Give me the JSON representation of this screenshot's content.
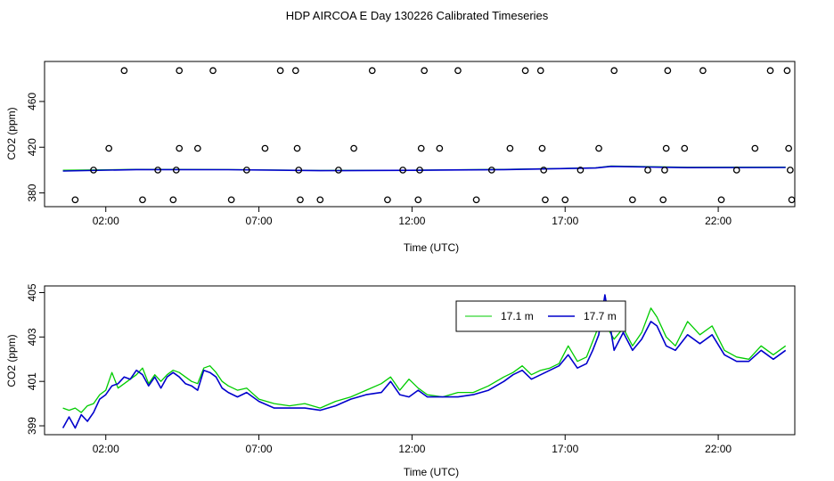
{
  "title": "HDP AIRCOA E  Day 130226  Calibrated Timeseries",
  "colors": {
    "series_17_1": "#00cc00",
    "series_17_7": "#0000cc",
    "points": "#000000",
    "frame": "#000000"
  },
  "chart_data": [
    {
      "type": "scatter",
      "xlabel": "Time (UTC)",
      "ylabel": "CO2 (ppm)",
      "xlim": [
        0,
        24.5
      ],
      "ylim": [
        368,
        495
      ],
      "xtick_values": [
        2,
        7,
        12,
        17,
        22
      ],
      "xtick_labels": [
        "02:00",
        "07:00",
        "12:00",
        "17:00",
        "22:00"
      ],
      "ytick_values": [
        380,
        420,
        460
      ],
      "ytick_labels": [
        "380",
        "420",
        "460"
      ],
      "grid": false,
      "points": [
        {
          "x": 1.0,
          "y": 374
        },
        {
          "x": 1.6,
          "y": 400
        },
        {
          "x": 2.1,
          "y": 419
        },
        {
          "x": 2.6,
          "y": 487
        },
        {
          "x": 3.2,
          "y": 374
        },
        {
          "x": 3.7,
          "y": 400
        },
        {
          "x": 4.2,
          "y": 374
        },
        {
          "x": 4.3,
          "y": 400
        },
        {
          "x": 4.4,
          "y": 419
        },
        {
          "x": 4.4,
          "y": 487
        },
        {
          "x": 5.0,
          "y": 419
        },
        {
          "x": 5.5,
          "y": 487
        },
        {
          "x": 6.1,
          "y": 374
        },
        {
          "x": 6.6,
          "y": 400
        },
        {
          "x": 7.2,
          "y": 419
        },
        {
          "x": 7.7,
          "y": 487
        },
        {
          "x": 8.2,
          "y": 487
        },
        {
          "x": 8.25,
          "y": 419
        },
        {
          "x": 8.3,
          "y": 400
        },
        {
          "x": 8.35,
          "y": 374
        },
        {
          "x": 9.0,
          "y": 374
        },
        {
          "x": 9.6,
          "y": 400
        },
        {
          "x": 10.1,
          "y": 419
        },
        {
          "x": 10.7,
          "y": 487
        },
        {
          "x": 11.2,
          "y": 374
        },
        {
          "x": 11.7,
          "y": 400
        },
        {
          "x": 12.2,
          "y": 374
        },
        {
          "x": 12.25,
          "y": 400
        },
        {
          "x": 12.3,
          "y": 419
        },
        {
          "x": 12.4,
          "y": 487
        },
        {
          "x": 12.9,
          "y": 419
        },
        {
          "x": 13.5,
          "y": 487
        },
        {
          "x": 14.1,
          "y": 374
        },
        {
          "x": 14.6,
          "y": 400
        },
        {
          "x": 15.2,
          "y": 419
        },
        {
          "x": 15.7,
          "y": 487
        },
        {
          "x": 16.2,
          "y": 487
        },
        {
          "x": 16.25,
          "y": 419
        },
        {
          "x": 16.3,
          "y": 400
        },
        {
          "x": 16.35,
          "y": 374
        },
        {
          "x": 17.0,
          "y": 374
        },
        {
          "x": 17.5,
          "y": 400
        },
        {
          "x": 18.1,
          "y": 419
        },
        {
          "x": 18.6,
          "y": 487
        },
        {
          "x": 19.2,
          "y": 374
        },
        {
          "x": 19.7,
          "y": 400
        },
        {
          "x": 20.2,
          "y": 374
        },
        {
          "x": 20.25,
          "y": 400
        },
        {
          "x": 20.3,
          "y": 419
        },
        {
          "x": 20.35,
          "y": 487
        },
        {
          "x": 20.9,
          "y": 419
        },
        {
          "x": 21.5,
          "y": 487
        },
        {
          "x": 22.1,
          "y": 374
        },
        {
          "x": 22.6,
          "y": 400
        },
        {
          "x": 23.2,
          "y": 419
        },
        {
          "x": 23.7,
          "y": 487
        },
        {
          "x": 24.25,
          "y": 487
        },
        {
          "x": 24.3,
          "y": 419
        },
        {
          "x": 24.35,
          "y": 400
        },
        {
          "x": 24.4,
          "y": 374
        }
      ],
      "series": [
        {
          "name": "17.1 m",
          "color": "#00cc00",
          "x": [
            0.6,
            3,
            6,
            9,
            12,
            15,
            18,
            18.5,
            21,
            24.2
          ],
          "y": [
            399.8,
            400.6,
            400.4,
            399.6,
            399.9,
            400.6,
            402,
            403.5,
            402.4,
            402.6
          ]
        },
        {
          "name": "17.7 m",
          "color": "#0000cc",
          "x": [
            0.6,
            3,
            6,
            9,
            12,
            15,
            18,
            18.5,
            21,
            24.2
          ],
          "y": [
            399.2,
            400.4,
            400.3,
            399.5,
            399.8,
            400.4,
            401.8,
            403.2,
            402.1,
            402.3
          ]
        }
      ]
    },
    {
      "type": "line",
      "xlabel": "Time (UTC)",
      "ylabel": "CO2 (ppm)",
      "xlim": [
        0,
        24.5
      ],
      "ylim": [
        398.6,
        405.3
      ],
      "xtick_values": [
        2,
        7,
        12,
        17,
        22
      ],
      "xtick_labels": [
        "02:00",
        "07:00",
        "12:00",
        "17:00",
        "22:00"
      ],
      "ytick_values": [
        399,
        401,
        403,
        405
      ],
      "ytick_labels": [
        "399",
        "401",
        "403",
        "405"
      ],
      "grid": false,
      "legend": {
        "position": "top-right"
      },
      "series": [
        {
          "name": "17.1 m",
          "color": "#00cc00",
          "x": [
            0.6,
            0.8,
            1.0,
            1.2,
            1.4,
            1.6,
            1.8,
            2.0,
            2.2,
            2.4,
            2.6,
            2.8,
            3.0,
            3.2,
            3.4,
            3.6,
            3.8,
            4.0,
            4.2,
            4.4,
            4.6,
            4.8,
            5.0,
            5.2,
            5.4,
            5.6,
            5.8,
            6.0,
            6.3,
            6.6,
            7.0,
            7.5,
            8.0,
            8.5,
            9.0,
            9.5,
            10.0,
            10.5,
            11.0,
            11.3,
            11.6,
            11.9,
            12.2,
            12.5,
            13.0,
            13.5,
            14.0,
            14.5,
            15.0,
            15.3,
            15.6,
            15.9,
            16.2,
            16.5,
            16.8,
            17.1,
            17.4,
            17.7,
            17.9,
            18.1,
            18.3,
            18.6,
            18.9,
            19.2,
            19.5,
            19.8,
            20.0,
            20.3,
            20.6,
            21.0,
            21.4,
            21.8,
            22.2,
            22.6,
            23.0,
            23.4,
            23.8,
            24.2
          ],
          "y": [
            399.8,
            399.7,
            399.8,
            399.6,
            399.9,
            400.0,
            400.4,
            400.6,
            401.4,
            400.7,
            400.9,
            401.1,
            401.3,
            401.6,
            400.9,
            401.3,
            401.0,
            401.3,
            401.5,
            401.4,
            401.2,
            401.0,
            400.9,
            401.6,
            401.7,
            401.4,
            401.0,
            400.8,
            400.6,
            400.7,
            400.2,
            400.0,
            399.9,
            400.0,
            399.8,
            400.1,
            400.3,
            400.6,
            400.9,
            401.2,
            400.6,
            401.1,
            400.7,
            400.4,
            400.3,
            400.5,
            400.5,
            400.8,
            401.2,
            401.4,
            401.7,
            401.3,
            401.5,
            401.6,
            401.8,
            402.6,
            401.9,
            402.1,
            402.8,
            403.5,
            403.6,
            402.9,
            403.4,
            402.6,
            403.2,
            404.3,
            403.9,
            403.0,
            402.6,
            403.7,
            403.1,
            403.5,
            402.4,
            402.1,
            402.0,
            402.6,
            402.2,
            402.6
          ]
        },
        {
          "name": "17.7 m",
          "color": "#0000cc",
          "x": [
            0.6,
            0.8,
            1.0,
            1.2,
            1.4,
            1.6,
            1.8,
            2.0,
            2.2,
            2.4,
            2.6,
            2.8,
            3.0,
            3.2,
            3.4,
            3.6,
            3.8,
            4.0,
            4.2,
            4.4,
            4.6,
            4.8,
            5.0,
            5.2,
            5.4,
            5.6,
            5.8,
            6.0,
            6.3,
            6.6,
            7.0,
            7.5,
            8.0,
            8.5,
            9.0,
            9.5,
            10.0,
            10.5,
            11.0,
            11.3,
            11.6,
            11.9,
            12.2,
            12.5,
            13.0,
            13.5,
            14.0,
            14.5,
            15.0,
            15.3,
            15.6,
            15.9,
            16.2,
            16.5,
            16.8,
            17.1,
            17.4,
            17.7,
            17.9,
            18.1,
            18.3,
            18.6,
            18.9,
            19.2,
            19.5,
            19.8,
            20.0,
            20.3,
            20.6,
            21.0,
            21.4,
            21.8,
            22.2,
            22.6,
            23.0,
            23.4,
            23.8,
            24.2
          ],
          "y": [
            398.9,
            399.4,
            398.9,
            399.5,
            399.2,
            399.6,
            400.2,
            400.4,
            400.8,
            400.9,
            401.2,
            401.1,
            401.5,
            401.3,
            400.8,
            401.2,
            400.7,
            401.2,
            401.4,
            401.2,
            400.9,
            400.8,
            400.6,
            401.5,
            401.4,
            401.2,
            400.7,
            400.5,
            400.3,
            400.5,
            400.1,
            399.8,
            399.8,
            399.8,
            399.7,
            399.9,
            400.2,
            400.4,
            400.5,
            401.0,
            400.4,
            400.3,
            400.6,
            400.3,
            400.3,
            400.3,
            400.4,
            400.6,
            401.0,
            401.3,
            401.5,
            401.1,
            401.3,
            401.5,
            401.7,
            402.2,
            401.6,
            401.8,
            402.4,
            403.1,
            404.9,
            402.4,
            403.2,
            402.4,
            402.9,
            403.7,
            403.5,
            402.6,
            402.4,
            403.1,
            402.7,
            403.1,
            402.2,
            401.9,
            401.9,
            402.4,
            402.0,
            402.4
          ]
        }
      ]
    }
  ]
}
